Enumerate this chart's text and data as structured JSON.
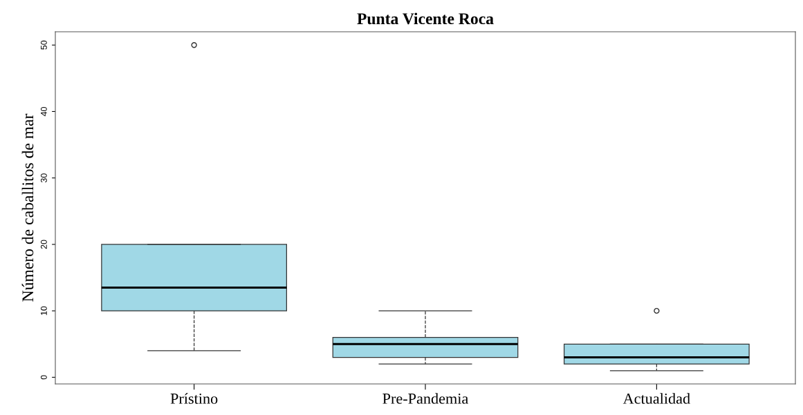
{
  "chart_data": {
    "type": "box",
    "title": "Punta Vicente Roca",
    "ylabel": "Número de caballitos de mar",
    "categories": [
      "Prístino",
      "Pre-Pandemia",
      "Actualidad"
    ],
    "color": "#a0d8e6",
    "boxes": [
      {
        "low": 4,
        "q1": 10,
        "median": 13.5,
        "q3": 20,
        "high": 20,
        "outliers": [
          50
        ]
      },
      {
        "low": 2,
        "q1": 3,
        "median": 5,
        "q3": 6,
        "high": 10
      },
      {
        "low": 1,
        "q1": 2,
        "median": 3,
        "q3": 5,
        "high": 5,
        "outliers": [
          10
        ]
      }
    ],
    "ylim": [
      -1,
      52
    ],
    "yticks": [
      0,
      10,
      20,
      30,
      40,
      50
    ],
    "grid": false,
    "legend": false
  }
}
